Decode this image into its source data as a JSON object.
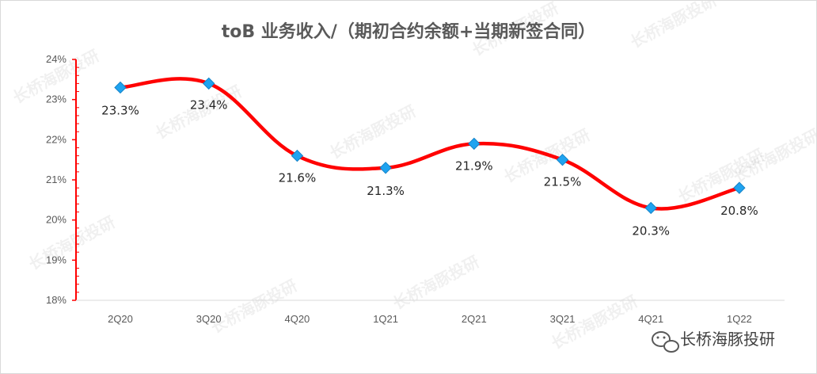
{
  "chart_data": {
    "type": "line",
    "title": "toB 业务收入/（期初合约余额+当期新签合同）",
    "categories": [
      "2Q20",
      "3Q20",
      "4Q20",
      "1Q21",
      "2Q21",
      "3Q21",
      "4Q21",
      "1Q22"
    ],
    "series": [
      {
        "values": [
          23.3,
          23.4,
          21.6,
          21.3,
          21.9,
          21.5,
          20.3,
          20.8
        ],
        "labels": [
          "23.3%",
          "23.4%",
          "21.6%",
          "21.3%",
          "21.9%",
          "21.5%",
          "20.3%",
          "20.8%"
        ],
        "line_color": "#ff0000",
        "marker_color": "#1fa3f0",
        "marker": "diamond",
        "smooth": true
      }
    ],
    "yticks": [
      "18%",
      "19%",
      "20%",
      "21%",
      "22%",
      "23%",
      "24%"
    ],
    "ylim": [
      18,
      24
    ],
    "grid": false,
    "legend": "none",
    "axis_color": "#ff0000"
  },
  "watermark": {
    "text": "长桥海豚投研",
    "brand_text": "长桥海豚投研",
    "brand_icon": "wechat-icon"
  }
}
